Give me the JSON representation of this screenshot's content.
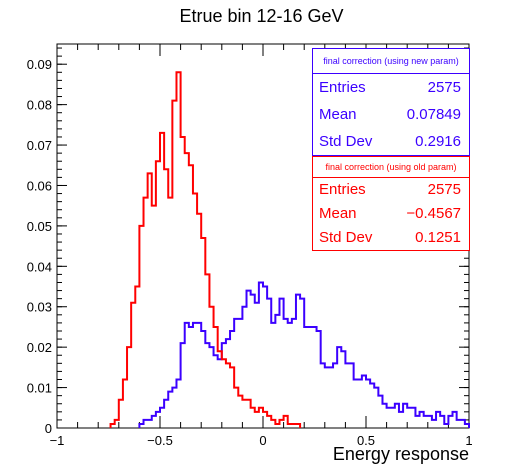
{
  "chart_data": {
    "type": "histogram",
    "title": "Etrue bin 12-16 GeV",
    "xlabel": "Energy response",
    "ylabel": "",
    "xlim": [
      -1,
      1
    ],
    "ylim": [
      0,
      0.095
    ],
    "bin_width": 0.02,
    "x_ticks": [
      -1,
      -0.5,
      0,
      0.5,
      1
    ],
    "x_tick_labels": [
      "−1",
      "−0.5",
      "0",
      "0.5",
      "1"
    ],
    "y_ticks": [
      0,
      0.01,
      0.02,
      0.03,
      0.04,
      0.05,
      0.06,
      0.07,
      0.08,
      0.09
    ],
    "y_tick_labels": [
      "0",
      "0.01",
      "0.02",
      "0.03",
      "0.04",
      "0.05",
      "0.06",
      "0.07",
      "0.08",
      "0.09"
    ],
    "series": [
      {
        "name": "final correction (using new param)",
        "color": "#3b00ff",
        "x_start": -0.6,
        "values": [
          0.001,
          0.002,
          0.002,
          0.003,
          0.004,
          0.005,
          0.007,
          0.009,
          0.01,
          0.012,
          0.021,
          0.026,
          0.025,
          0.026,
          0.026,
          0.024,
          0.021,
          0.02,
          0.018,
          0.017,
          0.021,
          0.022,
          0.024,
          0.027,
          0.027,
          0.03,
          0.034,
          0.033,
          0.031,
          0.036,
          0.035,
          0.032,
          0.026,
          0.028,
          0.032,
          0.027,
          0.026,
          0.027,
          0.033,
          0.032,
          0.025,
          0.025,
          0.025,
          0.024,
          0.016,
          0.015,
          0.015,
          0.016,
          0.02,
          0.019,
          0.016,
          0.016,
          0.012,
          0.012,
          0.013,
          0.012,
          0.011,
          0.01,
          0.008,
          0.006,
          0.005,
          0.005,
          0.006,
          0.004,
          0.006,
          0.005,
          0.005,
          0.003,
          0.004,
          0.003,
          0.003,
          0.002,
          0.004,
          0.003,
          0.001,
          0.003,
          0.004,
          0.002,
          0.002,
          0.001
        ]
      },
      {
        "name": "final correction (using old param)",
        "color": "#ff0000",
        "x_start": -0.74,
        "values": [
          0.001,
          0.002,
          0.007,
          0.012,
          0.02,
          0.031,
          0.035,
          0.05,
          0.057,
          0.063,
          0.055,
          0.066,
          0.073,
          0.064,
          0.057,
          0.081,
          0.088,
          0.072,
          0.068,
          0.065,
          0.058,
          0.053,
          0.047,
          0.038,
          0.03,
          0.025,
          0.019,
          0.017,
          0.016,
          0.015,
          0.01,
          0.008,
          0.007,
          0.007,
          0.005,
          0.004,
          0.005,
          0.004,
          0.003,
          0.002,
          0.001,
          0.002,
          0.003,
          0.001,
          0.001,
          0.001
        ]
      }
    ],
    "stats": [
      {
        "header": "final correction (using new param)",
        "color": "#3b00ff",
        "rows": [
          {
            "label": "Entries",
            "value": "2575"
          },
          {
            "label": "Mean",
            "value": "0.07849"
          },
          {
            "label": "Std Dev",
            "value": "0.2916"
          }
        ]
      },
      {
        "header": "final correction (using old param)",
        "color": "#ff0000",
        "rows": [
          {
            "label": "Entries",
            "value": "2575"
          },
          {
            "label": "Mean",
            "value": "−0.4567"
          },
          {
            "label": "Std Dev",
            "value": "0.1251"
          }
        ]
      }
    ],
    "legend_placement": "top-right",
    "grid": false
  }
}
